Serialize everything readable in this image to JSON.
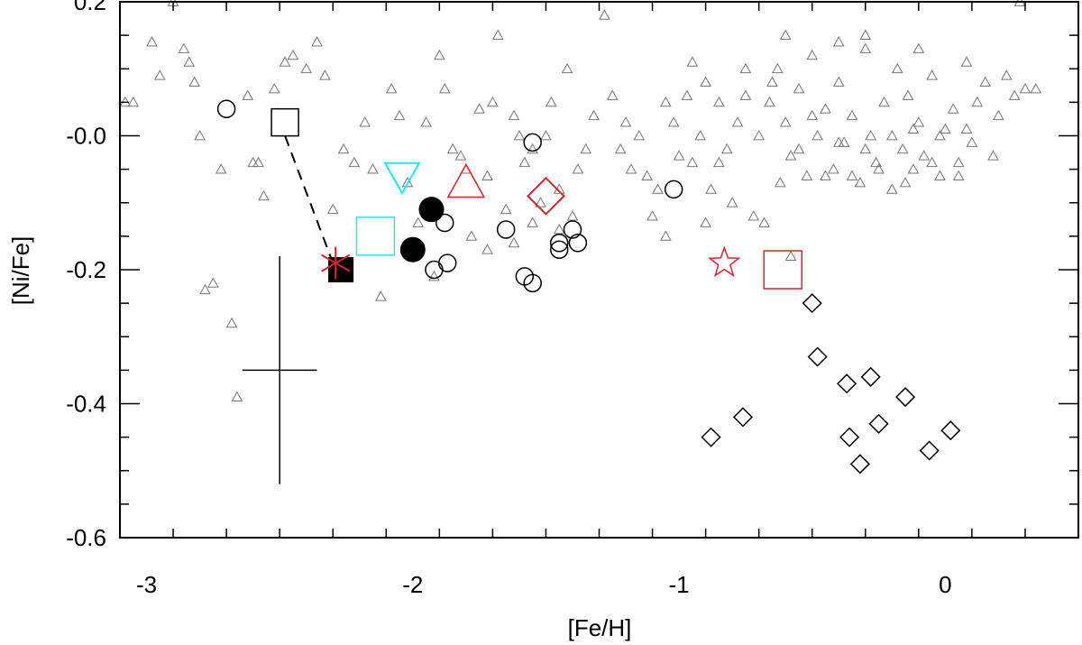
{
  "chart_data": {
    "type": "scatter",
    "title": "",
    "xlabel": "[Fe/H]",
    "ylabel": "[Ni/Fe]",
    "xlim": [
      -3.1,
      0.5
    ],
    "ylim": [
      -0.6,
      0.2
    ],
    "xticks": [
      {
        "value": -3,
        "label": "-3"
      },
      {
        "value": -2,
        "label": "-2"
      },
      {
        "value": -1,
        "label": "-1"
      },
      {
        "value": 0,
        "label": "0"
      }
    ],
    "yticks": [
      {
        "value": 0.2,
        "label": "0.2"
      },
      {
        "value": 0.0,
        "label": "-0.0"
      },
      {
        "value": -0.2,
        "label": "-0.2"
      },
      {
        "value": -0.4,
        "label": "-0.4"
      },
      {
        "value": -0.6,
        "label": "-0.6"
      }
    ],
    "xminor_step": 0.2,
    "yminor_step": 0.05,
    "grid": false,
    "colors": {
      "field": "#777777",
      "black": "#000000",
      "red": "#e0202a",
      "cyan": "#22e8f0"
    },
    "series": [
      {
        "marker": "triangle-open",
        "color": "#777777",
        "points": [
          [
            -3.08,
            0.05
          ],
          [
            -3.05,
            0.05
          ],
          [
            -2.98,
            0.14
          ],
          [
            -2.95,
            0.09
          ],
          [
            -2.9,
            0.2
          ],
          [
            -2.86,
            0.13
          ],
          [
            -2.84,
            0.11
          ],
          [
            -2.82,
            0.08
          ],
          [
            -2.8,
            0.0
          ],
          [
            -2.78,
            -0.23
          ],
          [
            -2.75,
            -0.22
          ],
          [
            -2.72,
            -0.05
          ],
          [
            -2.68,
            -0.28
          ],
          [
            -2.66,
            -0.39
          ],
          [
            -2.62,
            0.06
          ],
          [
            -2.6,
            -0.04
          ],
          [
            -2.58,
            -0.04
          ],
          [
            -2.56,
            -0.09
          ],
          [
            -2.52,
            0.07
          ],
          [
            -2.48,
            0.11
          ],
          [
            -2.45,
            0.12
          ],
          [
            -2.4,
            0.1
          ],
          [
            -2.36,
            0.14
          ],
          [
            -2.33,
            0.09
          ],
          [
            -2.3,
            -0.11
          ],
          [
            -2.26,
            -0.02
          ],
          [
            -2.22,
            -0.04
          ],
          [
            -2.18,
            0.02
          ],
          [
            -2.15,
            -0.05
          ],
          [
            -2.12,
            -0.24
          ],
          [
            -2.08,
            0.07
          ],
          [
            -2.05,
            0.03
          ],
          [
            -2.02,
            -0.07
          ],
          [
            -1.98,
            -0.13
          ],
          [
            -1.95,
            0.02
          ],
          [
            -1.92,
            -0.21
          ],
          [
            -1.9,
            0.12
          ],
          [
            -1.88,
            0.07
          ],
          [
            -1.85,
            -0.02
          ],
          [
            -1.82,
            -0.03
          ],
          [
            -1.8,
            -0.05
          ],
          [
            -1.78,
            -0.15
          ],
          [
            -1.75,
            0.04
          ],
          [
            -1.72,
            -0.06
          ],
          [
            -1.7,
            0.05
          ],
          [
            -1.68,
            0.15
          ],
          [
            -1.65,
            -0.11
          ],
          [
            -1.62,
            0.03
          ],
          [
            -1.6,
            0.0
          ],
          [
            -1.58,
            -0.04
          ],
          [
            -1.55,
            -0.02
          ],
          [
            -1.5,
            0.0
          ],
          [
            -1.48,
            0.05
          ],
          [
            -1.45,
            -0.08
          ],
          [
            -1.42,
            0.1
          ],
          [
            -1.4,
            -0.12
          ],
          [
            -1.38,
            -0.05
          ],
          [
            -1.35,
            -0.02
          ],
          [
            -1.32,
            0.03
          ],
          [
            -1.28,
            0.18
          ],
          [
            -1.25,
            0.06
          ],
          [
            -1.22,
            -0.02
          ],
          [
            -1.2,
            0.02
          ],
          [
            -1.18,
            -0.05
          ],
          [
            -1.15,
            0.0
          ],
          [
            -1.12,
            -0.06
          ],
          [
            -1.1,
            -0.12
          ],
          [
            -1.08,
            -0.08
          ],
          [
            -1.05,
            0.05
          ],
          [
            -1.02,
            0.02
          ],
          [
            -1.0,
            -0.03
          ],
          [
            -0.97,
            0.06
          ],
          [
            -0.95,
            -0.04
          ],
          [
            -0.92,
            0.0
          ],
          [
            -0.9,
            0.08
          ],
          [
            -0.88,
            -0.08
          ],
          [
            -0.85,
            0.05
          ],
          [
            -0.82,
            -0.02
          ],
          [
            -0.8,
            -0.1
          ],
          [
            -0.78,
            0.02
          ],
          [
            -0.75,
            0.06
          ],
          [
            -0.72,
            -0.12
          ],
          [
            -0.7,
            0.0
          ],
          [
            -0.68,
            -0.13
          ],
          [
            -0.66,
            0.05
          ],
          [
            -0.63,
            0.1
          ],
          [
            -0.6,
            0.02
          ],
          [
            -0.58,
            -0.03
          ],
          [
            -0.55,
            0.07
          ],
          [
            -0.52,
            -0.06
          ],
          [
            -0.5,
            0.12
          ],
          [
            -0.48,
            0.0
          ],
          [
            -0.45,
            0.04
          ],
          [
            -0.42,
            -0.05
          ],
          [
            -0.4,
            0.08
          ],
          [
            -0.38,
            -0.01
          ],
          [
            -0.35,
            0.03
          ],
          [
            -0.32,
            -0.07
          ],
          [
            -0.3,
            0.13
          ],
          [
            -0.28,
            0.0
          ],
          [
            -0.26,
            -0.04
          ],
          [
            -0.23,
            0.05
          ],
          [
            -0.2,
            -0.08
          ],
          [
            -0.18,
            0.1
          ],
          [
            -0.16,
            -0.02
          ],
          [
            -0.14,
            0.06
          ],
          [
            -0.12,
            -0.05
          ],
          [
            -0.1,
            0.02
          ],
          [
            -0.08,
            -0.03
          ],
          [
            -0.05,
            0.09
          ],
          [
            -0.02,
            -0.06
          ],
          [
            0.0,
            0.01
          ],
          [
            0.03,
            0.04
          ],
          [
            0.05,
            -0.04
          ],
          [
            0.08,
            0.11
          ],
          [
            0.1,
            -0.01
          ],
          [
            0.12,
            0.05
          ],
          [
            0.15,
            0.08
          ],
          [
            0.18,
            -0.03
          ],
          [
            0.2,
            0.03
          ],
          [
            0.23,
            0.09
          ],
          [
            0.26,
            0.06
          ],
          [
            0.3,
            0.07
          ],
          [
            0.34,
            0.07
          ],
          [
            0.28,
            0.2
          ],
          [
            -0.95,
            0.11
          ],
          [
            -0.6,
            0.15
          ],
          [
            -0.4,
            0.14
          ],
          [
            -0.3,
            0.15
          ],
          [
            -0.1,
            0.13
          ],
          [
            -0.85,
            -0.04
          ],
          [
            -0.62,
            -0.07
          ],
          [
            -0.55,
            -0.02
          ],
          [
            -0.45,
            -0.06
          ],
          [
            -0.35,
            -0.06
          ],
          [
            -0.25,
            -0.05
          ],
          [
            -0.15,
            -0.07
          ],
          [
            -0.05,
            -0.04
          ],
          [
            0.05,
            -0.06
          ],
          [
            -0.2,
            0.0
          ],
          [
            -0.3,
            -0.02
          ],
          [
            -0.4,
            -0.01
          ],
          [
            -0.5,
            0.03
          ],
          [
            -0.12,
            0.01
          ],
          [
            -0.02,
            0.0
          ],
          [
            0.08,
            0.01
          ],
          [
            -0.65,
            0.08
          ],
          [
            -0.75,
            0.1
          ],
          [
            -1.05,
            -0.15
          ],
          [
            -1.45,
            -0.14
          ],
          [
            -1.52,
            -0.1
          ],
          [
            -1.62,
            -0.16
          ],
          [
            -1.72,
            -0.17
          ],
          [
            -1.55,
            -0.13
          ],
          [
            -0.9,
            -0.13
          ],
          [
            -0.58,
            -0.18
          ]
        ]
      },
      {
        "marker": "circle-open",
        "color": "#000000",
        "points": [
          [
            -2.7,
            0.04
          ],
          [
            -1.55,
            -0.01
          ],
          [
            -1.88,
            -0.13
          ],
          [
            -1.92,
            -0.2
          ],
          [
            -1.87,
            -0.19
          ],
          [
            -1.65,
            -0.14
          ],
          [
            -1.58,
            -0.21
          ],
          [
            -1.55,
            -0.22
          ],
          [
            -1.45,
            -0.16
          ],
          [
            -1.45,
            -0.17
          ],
          [
            -1.4,
            -0.14
          ],
          [
            -1.38,
            -0.16
          ],
          [
            -1.02,
            -0.08
          ]
        ]
      },
      {
        "marker": "circle-filled",
        "color": "#000000",
        "points": [
          [
            -1.93,
            -0.11
          ],
          [
            -2.0,
            -0.17
          ]
        ]
      },
      {
        "marker": "square-open",
        "color": "#000000",
        "points": [
          [
            -2.48,
            0.02
          ]
        ]
      },
      {
        "marker": "square-filled",
        "color": "#000000",
        "points": [
          [
            -2.27,
            -0.2
          ]
        ]
      },
      {
        "marker": "asterisk",
        "color": "#e0202a",
        "points": [
          [
            -2.29,
            -0.19
          ]
        ]
      },
      {
        "marker": "triangle-down-open",
        "color": "#22e8f0",
        "points": [
          [
            -2.04,
            -0.06
          ]
        ]
      },
      {
        "marker": "square-open",
        "color": "#22e8f0",
        "points": [
          [
            -2.14,
            -0.15
          ]
        ]
      },
      {
        "marker": "triangle-open",
        "color": "#e0202a",
        "points": [
          [
            -1.8,
            -0.07
          ]
        ]
      },
      {
        "marker": "diamond-open",
        "color": "#e0202a",
        "points": [
          [
            -1.5,
            -0.09
          ]
        ]
      },
      {
        "marker": "star-open",
        "color": "#e0202a",
        "points": [
          [
            -0.83,
            -0.19
          ]
        ]
      },
      {
        "marker": "square-open",
        "color": "#e0202a",
        "points": [
          [
            -0.61,
            -0.2
          ]
        ]
      },
      {
        "marker": "diamond-open",
        "color": "#000000",
        "points": [
          [
            -0.5,
            -0.25
          ],
          [
            -0.48,
            -0.33
          ],
          [
            -0.37,
            -0.37
          ],
          [
            -0.28,
            -0.36
          ],
          [
            -0.15,
            -0.39
          ],
          [
            -0.36,
            -0.45
          ],
          [
            -0.25,
            -0.43
          ],
          [
            -0.32,
            -0.49
          ],
          [
            -0.06,
            -0.47
          ],
          [
            0.02,
            -0.44
          ],
          [
            -0.76,
            -0.42
          ],
          [
            -0.88,
            -0.45
          ]
        ]
      }
    ],
    "dashed_line": [
      [
        -2.48,
        -0.0
      ],
      [
        -2.3,
        -0.19
      ]
    ],
    "error_bar": {
      "x": -2.5,
      "y": -0.35,
      "xerr": 0.14,
      "yerr": 0.17
    }
  }
}
